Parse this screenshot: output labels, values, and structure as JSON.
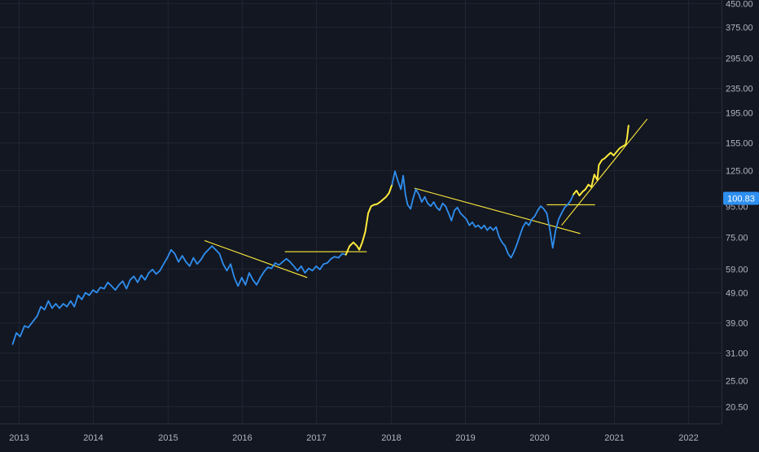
{
  "chart_data": {
    "type": "line",
    "title": "",
    "xlabel": "",
    "ylabel": "",
    "scale": "log",
    "ylim": [
      18,
      460
    ],
    "xlim": [
      2012.75,
      2022.45
    ],
    "grid": true,
    "x_ticks": [
      "2013",
      "2014",
      "2015",
      "2016",
      "2017",
      "2018",
      "2019",
      "2020",
      "2021",
      "2022"
    ],
    "y_ticks": [
      "450.00",
      "375.00",
      "295.00",
      "235.00",
      "195.00",
      "155.00",
      "125.00",
      "95.00",
      "75.00",
      "59.00",
      "49.00",
      "39.00",
      "31.00",
      "25.00",
      "20.50"
    ],
    "last_price": "100.83",
    "colors": {
      "background": "#131722",
      "grid": "#1f2433",
      "price_line": "#2f8ff0",
      "highlight": "#ffeb3b",
      "trendline": "#ffeb3b",
      "axis_text": "#b2b5be",
      "price_tag": "#2f8ff0"
    },
    "series": [
      {
        "values": [
          [
            2012.92,
            33
          ],
          [
            2012.97,
            36
          ],
          [
            2013.02,
            35
          ],
          [
            2013.08,
            38
          ],
          [
            2013.13,
            37.5
          ],
          [
            2013.2,
            39.5
          ],
          [
            2013.25,
            41
          ],
          [
            2013.3,
            44
          ],
          [
            2013.35,
            43
          ],
          [
            2013.4,
            46
          ],
          [
            2013.45,
            43.5
          ],
          [
            2013.5,
            45
          ],
          [
            2013.55,
            43.5
          ],
          [
            2013.6,
            45
          ],
          [
            2013.65,
            44
          ],
          [
            2013.7,
            46
          ],
          [
            2013.75,
            44
          ],
          [
            2013.8,
            48
          ],
          [
            2013.85,
            46.5
          ],
          [
            2013.9,
            49
          ],
          [
            2013.95,
            48
          ],
          [
            2014.0,
            50
          ],
          [
            2014.05,
            49
          ],
          [
            2014.1,
            51
          ],
          [
            2014.15,
            50.5
          ],
          [
            2014.2,
            53
          ],
          [
            2014.25,
            51.5
          ],
          [
            2014.3,
            50
          ],
          [
            2014.35,
            52
          ],
          [
            2014.4,
            53.5
          ],
          [
            2014.45,
            50.5
          ],
          [
            2014.5,
            54
          ],
          [
            2014.55,
            55.5
          ],
          [
            2014.6,
            53
          ],
          [
            2014.65,
            56
          ],
          [
            2014.7,
            54
          ],
          [
            2014.75,
            57
          ],
          [
            2014.8,
            58.5
          ],
          [
            2014.85,
            56.5
          ],
          [
            2014.9,
            58
          ],
          [
            2014.95,
            61
          ],
          [
            2015.0,
            64
          ],
          [
            2015.05,
            68
          ],
          [
            2015.1,
            66
          ],
          [
            2015.15,
            62
          ],
          [
            2015.2,
            65
          ],
          [
            2015.25,
            62
          ],
          [
            2015.3,
            60
          ],
          [
            2015.35,
            64
          ],
          [
            2015.4,
            61
          ],
          [
            2015.45,
            63
          ],
          [
            2015.5,
            66
          ],
          [
            2015.55,
            68
          ],
          [
            2015.6,
            70
          ],
          [
            2015.65,
            68
          ],
          [
            2015.7,
            66
          ],
          [
            2015.75,
            61
          ],
          [
            2015.8,
            58
          ],
          [
            2015.85,
            61
          ],
          [
            2015.9,
            55
          ],
          [
            2015.95,
            51.5
          ],
          [
            2016.0,
            55
          ],
          [
            2016.05,
            52
          ],
          [
            2016.1,
            57
          ],
          [
            2016.15,
            54
          ],
          [
            2016.2,
            52
          ],
          [
            2016.25,
            55
          ],
          [
            2016.3,
            57.5
          ],
          [
            2016.35,
            59.5
          ],
          [
            2016.4,
            59
          ],
          [
            2016.45,
            61.5
          ],
          [
            2016.5,
            60.5
          ],
          [
            2016.55,
            62
          ],
          [
            2016.6,
            63.5
          ],
          [
            2016.65,
            62
          ],
          [
            2016.7,
            60
          ],
          [
            2016.75,
            58
          ],
          [
            2016.8,
            60
          ],
          [
            2016.85,
            57
          ],
          [
            2016.9,
            59
          ],
          [
            2016.95,
            58
          ],
          [
            2017.0,
            60
          ],
          [
            2017.05,
            58.5
          ],
          [
            2017.1,
            61
          ],
          [
            2017.15,
            61.5
          ],
          [
            2017.2,
            63.5
          ],
          [
            2017.25,
            64.5
          ],
          [
            2017.3,
            64
          ],
          [
            2017.35,
            66
          ],
          [
            2017.4,
            65.5
          ]
        ]
      },
      {
        "values": [
          [
            2017.4,
            65.5
          ],
          [
            2017.45,
            70
          ],
          [
            2017.5,
            72
          ],
          [
            2017.55,
            70
          ],
          [
            2017.58,
            68
          ],
          [
            2017.62,
            72
          ],
          [
            2017.66,
            78
          ],
          [
            2017.7,
            90
          ],
          [
            2017.74,
            95
          ],
          [
            2017.78,
            96
          ],
          [
            2017.82,
            96.5
          ],
          [
            2017.86,
            98
          ],
          [
            2017.9,
            100
          ],
          [
            2017.94,
            102
          ],
          [
            2017.98,
            105
          ],
          [
            2018.02,
            112
          ]
        ]
      },
      {
        "values": [
          [
            2018.02,
            112
          ],
          [
            2018.06,
            124
          ],
          [
            2018.1,
            115
          ],
          [
            2018.14,
            108
          ],
          [
            2018.17,
            120
          ],
          [
            2018.2,
            104
          ],
          [
            2018.23,
            96
          ],
          [
            2018.27,
            93
          ],
          [
            2018.3,
            100
          ],
          [
            2018.34,
            108
          ],
          [
            2018.38,
            104
          ],
          [
            2018.42,
            98
          ],
          [
            2018.46,
            102
          ],
          [
            2018.5,
            97
          ],
          [
            2018.54,
            95
          ],
          [
            2018.58,
            98
          ],
          [
            2018.62,
            94
          ],
          [
            2018.66,
            92
          ],
          [
            2018.7,
            97
          ],
          [
            2018.74,
            95
          ],
          [
            2018.78,
            90
          ],
          [
            2018.82,
            85
          ],
          [
            2018.86,
            92
          ],
          [
            2018.9,
            94
          ],
          [
            2018.94,
            90
          ],
          [
            2018.98,
            88
          ],
          [
            2019.02,
            86
          ],
          [
            2019.06,
            82
          ],
          [
            2019.1,
            84
          ],
          [
            2019.14,
            81
          ],
          [
            2019.18,
            82
          ],
          [
            2019.22,
            80
          ],
          [
            2019.26,
            82
          ],
          [
            2019.3,
            79
          ],
          [
            2019.34,
            81
          ],
          [
            2019.38,
            79
          ],
          [
            2019.42,
            81
          ],
          [
            2019.46,
            75
          ],
          [
            2019.5,
            72
          ],
          [
            2019.54,
            70
          ],
          [
            2019.58,
            66
          ],
          [
            2019.62,
            64
          ],
          [
            2019.66,
            67
          ],
          [
            2019.7,
            71
          ],
          [
            2019.74,
            76
          ],
          [
            2019.78,
            81
          ],
          [
            2019.82,
            84
          ],
          [
            2019.86,
            82
          ],
          [
            2019.9,
            86
          ],
          [
            2019.94,
            88
          ],
          [
            2019.98,
            92
          ],
          [
            2020.02,
            95
          ],
          [
            2020.06,
            93
          ],
          [
            2020.1,
            90
          ],
          [
            2020.14,
            80
          ],
          [
            2020.18,
            69
          ],
          [
            2020.22,
            79
          ],
          [
            2020.26,
            86
          ],
          [
            2020.3,
            90
          ],
          [
            2020.34,
            94
          ],
          [
            2020.38,
            96
          ],
          [
            2020.42,
            99
          ],
          [
            2020.46,
            104
          ]
        ]
      },
      {
        "values": [
          [
            2020.46,
            104
          ],
          [
            2020.5,
            107
          ],
          [
            2020.54,
            103
          ],
          [
            2020.58,
            106
          ],
          [
            2020.62,
            108
          ],
          [
            2020.66,
            112
          ],
          [
            2020.7,
            110
          ],
          [
            2020.74,
            121
          ],
          [
            2020.78,
            116
          ],
          [
            2020.8,
            130
          ],
          [
            2020.84,
            135
          ],
          [
            2020.88,
            137
          ],
          [
            2020.92,
            140
          ],
          [
            2020.96,
            143
          ],
          [
            2021.0,
            140
          ],
          [
            2021.04,
            144
          ],
          [
            2021.08,
            148
          ],
          [
            2021.12,
            150
          ],
          [
            2021.16,
            152
          ],
          [
            2021.18,
            160
          ],
          [
            2021.2,
            176
          ]
        ]
      }
    ],
    "trendlines": [
      {
        "from": [
          2015.5,
          73
        ],
        "to": [
          2016.88,
          55
        ]
      },
      {
        "from": [
          2016.58,
          67
        ],
        "to": [
          2017.68,
          67
        ]
      },
      {
        "from": [
          2018.32,
          109
        ],
        "to": [
          2020.55,
          77
        ]
      },
      {
        "from": [
          2020.1,
          96
        ],
        "to": [
          2020.75,
          96
        ]
      },
      {
        "from": [
          2020.3,
          82
        ],
        "to": [
          2021.45,
          185
        ]
      }
    ]
  }
}
